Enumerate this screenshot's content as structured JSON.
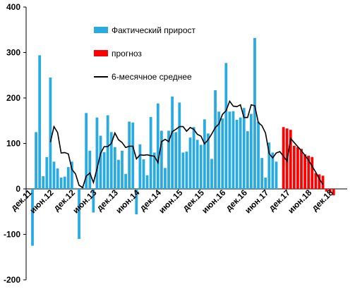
{
  "chart_data": {
    "type": "bar",
    "ylim": [
      -200,
      400
    ],
    "yticks": [
      -200,
      -100,
      0,
      100,
      200,
      300,
      400
    ],
    "x_tick_labels": [
      {
        "label": "дек.11",
        "index": 0
      },
      {
        "label": "июн.12",
        "index": 6
      },
      {
        "label": "дек.12",
        "index": 12
      },
      {
        "label": "июн.13",
        "index": 18
      },
      {
        "label": "дек.13",
        "index": 24
      },
      {
        "label": "июн.14",
        "index": 30
      },
      {
        "label": "дек.14",
        "index": 36
      },
      {
        "label": "июн.15",
        "index": 42
      },
      {
        "label": "дек.15",
        "index": 48
      },
      {
        "label": "июн.16",
        "index": 54
      },
      {
        "label": "дек.16",
        "index": 60
      },
      {
        "label": "июн.17",
        "index": 66
      },
      {
        "label": "дек.17",
        "index": 72
      },
      {
        "label": "июн.18",
        "index": 78
      },
      {
        "label": "дек.18",
        "index": 84
      }
    ],
    "series": [
      {
        "name": "Фактический прирост",
        "color": "#29abe2",
        "start_index": 0,
        "values": [
          -125,
          125,
          294,
          28,
          70,
          245,
          60,
          45,
          25,
          27,
          48,
          60,
          2,
          -110,
          3,
          167,
          84,
          -52,
          157,
          117,
          81,
          162,
          125,
          92,
          64,
          84,
          33,
          148,
          146,
          -56,
          98,
          65,
          30,
          158,
          80,
          188,
          128,
          46,
          128,
          203,
          125,
          190,
          80,
          82,
          113,
          136,
          108,
          97,
          153,
          122,
          66,
          217,
          170,
          155,
          277,
          170,
          171,
          152,
          157,
          178,
          127,
          165,
          332,
          148,
          68,
          25,
          102,
          80,
          60
        ]
      },
      {
        "name": "прогноз",
        "color": "#ff0000",
        "start_index": 70,
        "values": [
          136,
          133,
          130,
          95,
          92,
          88,
          76,
          73,
          70,
          35,
          32,
          29,
          -6,
          -9,
          -14
        ]
      },
      {
        "name": "6-месячное среднее",
        "color": "#000000",
        "type": "line",
        "start_index": 5,
        "values": [
          103,
          137,
          124,
          79,
          80,
          77,
          43,
          33,
          8,
          3,
          28,
          35,
          14,
          44,
          78,
          93,
          93,
          100,
          123,
          108,
          102,
          91,
          94,
          94,
          66,
          75,
          74,
          75,
          73,
          72,
          58,
          104,
          109,
          104,
          126,
          131,
          137,
          137,
          127,
          135,
          131,
          120,
          116,
          99,
          108,
          121,
          135,
          143,
          164,
          172,
          193,
          182,
          181,
          185,
          157,
          157,
          185,
          183,
          146,
          139,
          123,
          78,
          68,
          79,
          82,
          72,
          61,
          111,
          102,
          93,
          84,
          74,
          63,
          50,
          37,
          22,
          10
        ]
      }
    ],
    "legend_position": "top-left"
  }
}
